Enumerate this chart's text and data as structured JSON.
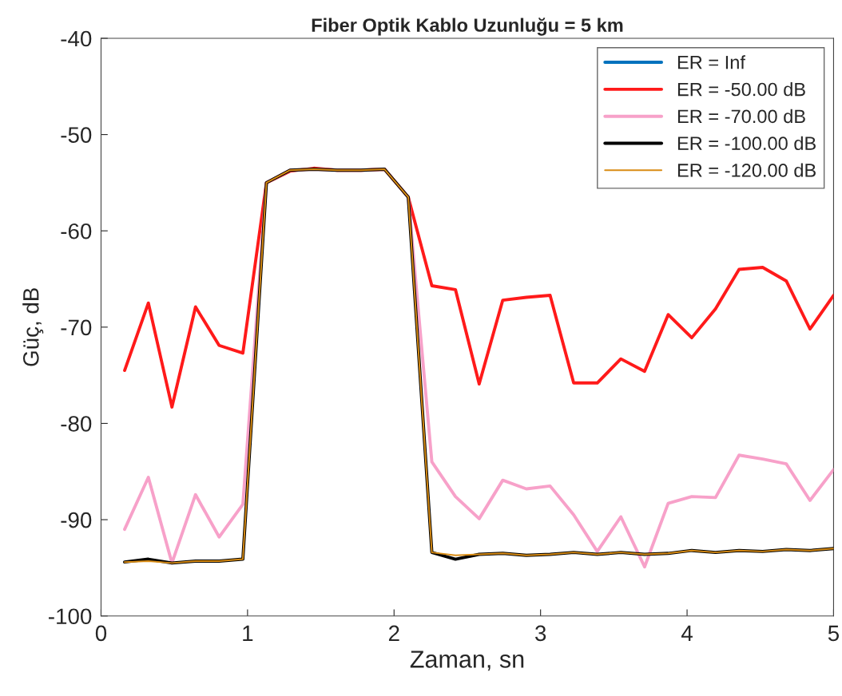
{
  "chart_data": {
    "type": "line",
    "title": "Fiber Optik Kablo Uzunluğu = 5 km",
    "xlabel": "Zaman, sn",
    "ylabel": "Güç, dB",
    "x": [
      0.161,
      0.323,
      0.484,
      0.645,
      0.806,
      0.968,
      1.129,
      1.29,
      1.452,
      1.613,
      1.774,
      1.935,
      2.097,
      2.258,
      2.419,
      2.581,
      2.742,
      2.903,
      3.065,
      3.226,
      3.387,
      3.548,
      3.71,
      3.871,
      4.032,
      4.194,
      4.355,
      4.516,
      4.677,
      4.839,
      5.0
    ],
    "series": [
      {
        "name": "ER = Inf",
        "color": "#0072bd",
        "values": [
          null,
          null,
          null,
          null,
          null,
          null,
          null,
          null,
          null,
          null,
          null,
          null,
          null,
          null,
          null,
          null,
          null,
          null,
          null,
          null,
          null,
          null,
          null,
          null,
          null,
          null,
          null,
          null,
          null,
          null,
          null
        ]
      },
      {
        "name": "ER = -50.00 dB",
        "color": "#ff1a1a",
        "values": [
          -74.5,
          -67.5,
          -78.3,
          -67.9,
          -71.9,
          -72.7,
          -55.0,
          -53.8,
          -53.5,
          -53.7,
          -53.7,
          -53.6,
          -56.5,
          -65.7,
          -66.1,
          -75.9,
          -67.2,
          -66.9,
          -66.7,
          -75.8,
          -75.8,
          -73.3,
          -74.6,
          -68.7,
          -71.1,
          -68.1,
          -64.0,
          -63.8,
          -65.2,
          -70.2,
          -66.7
        ]
      },
      {
        "name": "ER = -70.00 dB",
        "color": "#f7a1c9",
        "values": [
          -91.0,
          -85.6,
          -94.5,
          -87.4,
          -91.8,
          -88.4,
          -55.0,
          -53.7,
          -53.6,
          -53.7,
          -53.7,
          -53.6,
          -56.5,
          -84.0,
          -87.6,
          -89.9,
          -85.9,
          -86.8,
          -86.5,
          -89.5,
          -93.3,
          -89.7,
          -94.9,
          -88.3,
          -87.6,
          -87.7,
          -83.3,
          -83.7,
          -84.2,
          -88.0,
          -84.8
        ]
      },
      {
        "name": "ER = -100.00 dB",
        "color": "#000000",
        "values": [
          -94.4,
          -94.1,
          -94.5,
          -94.3,
          -94.3,
          -94.1,
          -55.0,
          -53.7,
          -53.6,
          -53.7,
          -53.7,
          -53.6,
          -56.5,
          -93.4,
          -94.1,
          -93.6,
          -93.5,
          -93.7,
          -93.6,
          -93.4,
          -93.6,
          -93.4,
          -93.6,
          -93.5,
          -93.2,
          -93.4,
          -93.2,
          -93.3,
          -93.1,
          -93.2,
          -93.0
        ]
      },
      {
        "name": "ER = -120.00 dB",
        "color": "#d98c14",
        "values": [
          -94.4,
          -94.3,
          -94.5,
          -94.3,
          -94.3,
          -94.1,
          -55.0,
          -53.7,
          -53.6,
          -53.7,
          -53.7,
          -53.6,
          -56.5,
          -93.4,
          -93.7,
          -93.6,
          -93.5,
          -93.7,
          -93.6,
          -93.4,
          -93.6,
          -93.4,
          -93.6,
          -93.5,
          -93.2,
          -93.4,
          -93.2,
          -93.3,
          -93.1,
          -93.2,
          -93.0
        ]
      }
    ],
    "xlim": [
      0,
      5
    ],
    "xticks": [
      0,
      1,
      2,
      3,
      4,
      5
    ],
    "ylim": [
      -100,
      -40
    ],
    "yticks": [
      -100,
      -90,
      -80,
      -70,
      -60,
      -50,
      -40
    ],
    "grid": false,
    "legend": "top right",
    "marker": "none",
    "line_style": "solid"
  }
}
